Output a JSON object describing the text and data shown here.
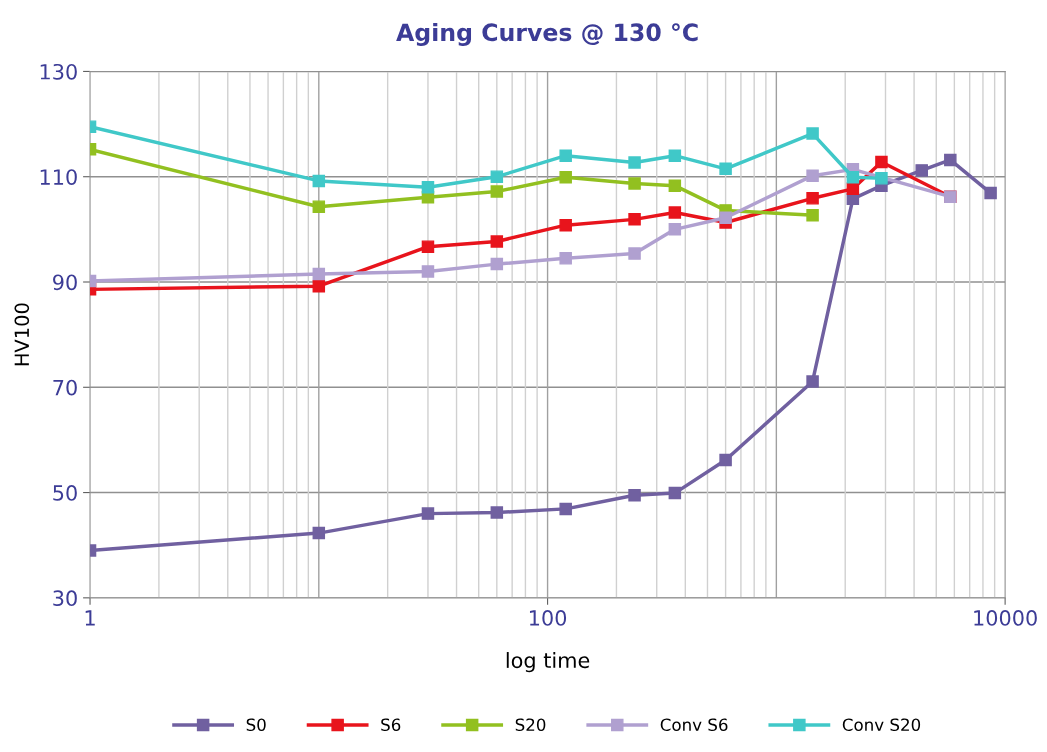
{
  "chart_data": {
    "type": "line",
    "title": "Aging Curves @ 130 °C",
    "xlabel": "log time",
    "ylabel": "HV100",
    "log": "x",
    "xlim": [
      1,
      10000
    ],
    "xticks": [
      1,
      100,
      10000
    ],
    "ylim": [
      30,
      130
    ],
    "yticks": [
      30,
      50,
      70,
      90,
      110,
      130
    ],
    "grid": true,
    "legend": "bottom",
    "marker": "square",
    "line_style": "solid",
    "series": [
      {
        "name": "S0",
        "color": "#7060a0",
        "x": [
          1,
          10,
          30,
          60,
          120,
          240,
          360,
          600,
          1440,
          2160,
          2880,
          4320,
          5760,
          8640
        ],
        "values": [
          39.0,
          42.3,
          46.0,
          46.2,
          46.9,
          49.5,
          49.9,
          56.2,
          71.1,
          105.8,
          108.3,
          111.2,
          113.2,
          106.9
        ]
      },
      {
        "name": "S6",
        "color": "#e8141c",
        "x": [
          1,
          10,
          30,
          60,
          120,
          240,
          360,
          600,
          1440,
          2160,
          2880,
          5760
        ],
        "values": [
          88.6,
          89.2,
          96.7,
          97.7,
          100.8,
          101.9,
          103.2,
          101.3,
          105.9,
          107.7,
          112.8,
          106.2
        ]
      },
      {
        "name": "S20",
        "color": "#92c020",
        "x": [
          1,
          10,
          30,
          60,
          120,
          240,
          360,
          600,
          1440
        ],
        "values": [
          115.2,
          104.3,
          106.1,
          107.2,
          109.9,
          108.7,
          108.3,
          103.6,
          102.7
        ]
      },
      {
        "name": "Conv S6",
        "color": "#b0a0d0",
        "x": [
          1,
          10,
          30,
          60,
          120,
          240,
          360,
          600,
          1440,
          2160,
          5760
        ],
        "values": [
          90.2,
          91.5,
          92.0,
          93.4,
          94.5,
          95.4,
          100.0,
          102.2,
          110.2,
          111.4,
          106.2
        ]
      },
      {
        "name": "Conv S20",
        "color": "#40c8c8",
        "x": [
          1,
          10,
          30,
          60,
          120,
          240,
          360,
          600,
          1440,
          2160,
          2880
        ],
        "values": [
          119.5,
          109.2,
          108.0,
          110.0,
          114.0,
          112.7,
          114.0,
          111.5,
          118.2,
          109.9,
          109.7
        ]
      }
    ]
  }
}
